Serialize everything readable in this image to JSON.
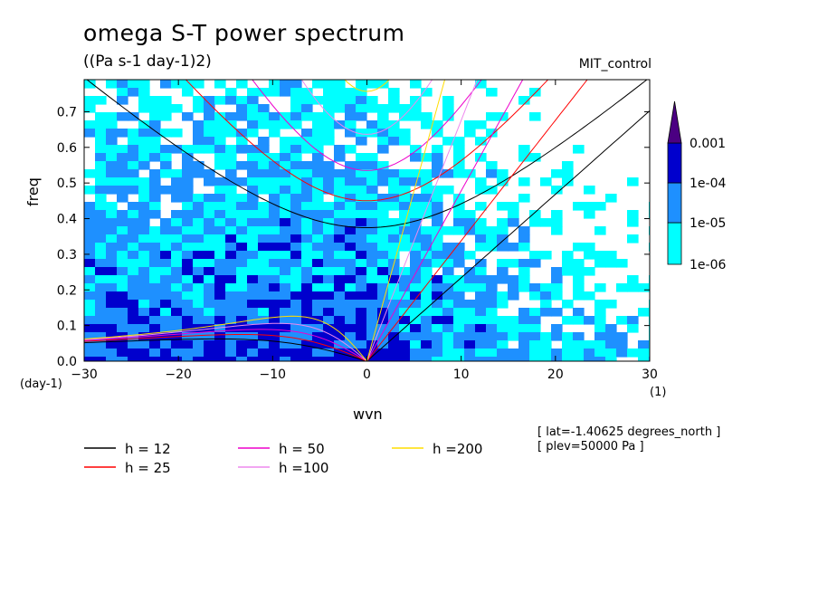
{
  "chart_data": {
    "type": "heatmap",
    "title": "omega S-T power spectrum",
    "subtitle": "((Pa s-1 day-1)2)",
    "run_label": "MIT_control",
    "xlabel": "wvn",
    "ylabel": "freq",
    "x_unit": "(1)",
    "y_unit": "(day-1)",
    "xlim": [
      -30,
      30
    ],
    "ylim": [
      0,
      0.79
    ],
    "xticks": [
      -30,
      -20,
      -10,
      0,
      10,
      20,
      30
    ],
    "yticks": [
      0.0,
      0.1,
      0.2,
      0.3,
      0.4,
      0.5,
      0.6,
      0.7
    ],
    "colorbar": {
      "labels": [
        "0.001",
        "1e-04",
        "1e-05",
        "1e-06"
      ],
      "levels": [
        {
          "min": "1e-06",
          "max": "1e-05",
          "color": "#00ffff"
        },
        {
          "min": "1e-05",
          "max": "1e-04",
          "color": "#1e90ff"
        },
        {
          "min": "1e-04",
          "max": "0.001",
          "color": "#0000cd"
        },
        {
          "min": "0.001",
          "max": "",
          "color": "#4b0082"
        }
      ],
      "below_min_color": "#ffffff"
    },
    "legend": [
      {
        "label": "h = 12",
        "h": 12,
        "color": "#000000"
      },
      {
        "label": "h = 25",
        "h": 25,
        "color": "#ff0000"
      },
      {
        "label": "h = 50",
        "h": 50,
        "color": "#ee00cc"
      },
      {
        "label": "h =100",
        "h": 100,
        "color": "#ee88ee"
      },
      {
        "label": "h =200",
        "h": 200,
        "color": "#ffdd00"
      }
    ],
    "legend_position": "bottom-left",
    "annotations": [
      "[ lat=-1.40625 degrees_north ]",
      "[ plev=50000 Pa ]"
    ]
  }
}
